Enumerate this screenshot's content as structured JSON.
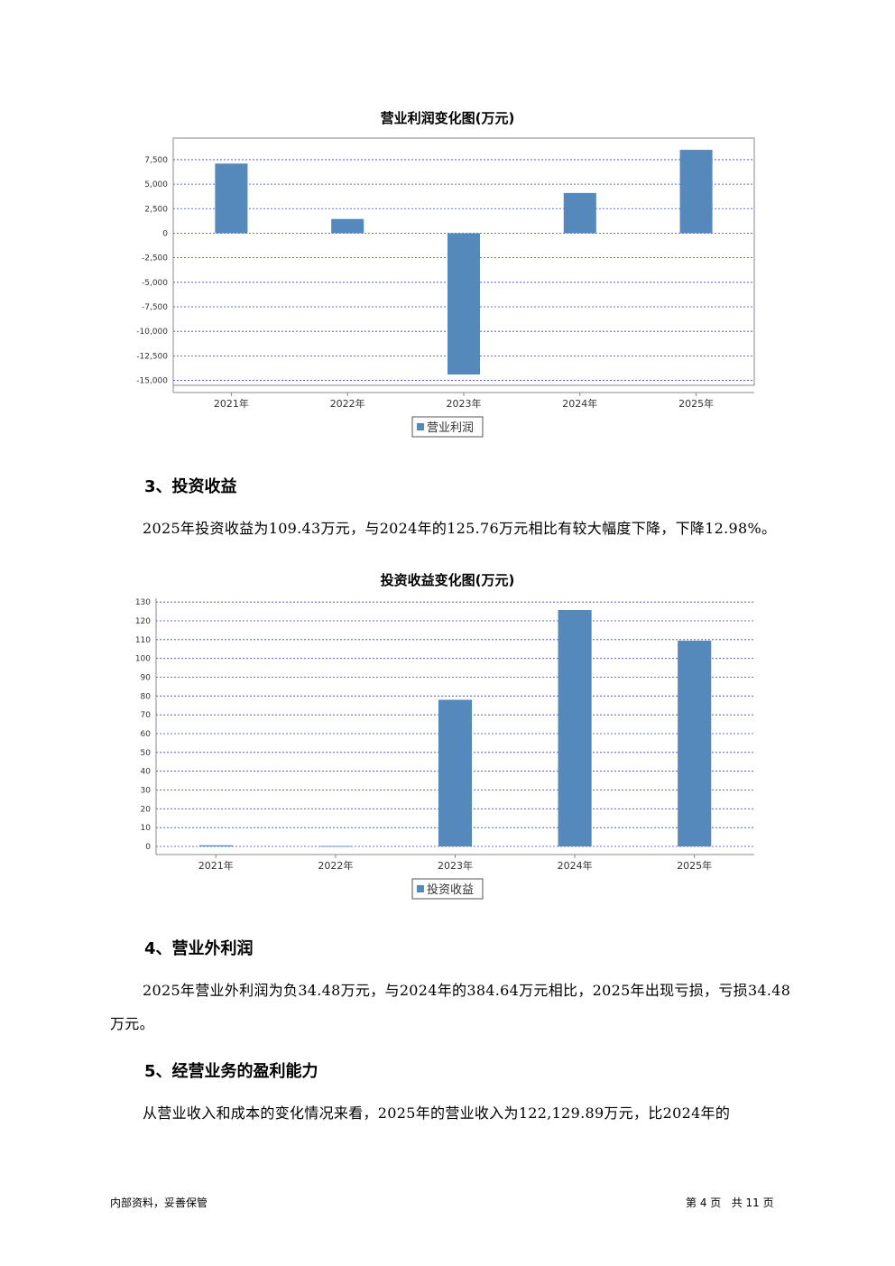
{
  "charts": {
    "op_profit": {
      "title": "营业利润变化图(万元)",
      "chart_data": {
        "type": "bar",
        "title": "营业利润变化图(万元)",
        "categories": [
          "2021年",
          "2022年",
          "2023年",
          "2024年",
          "2025年"
        ],
        "series": [
          {
            "name": "营业利润",
            "values": [
              7100,
              1450,
              -14400,
              4100,
              8500
            ]
          }
        ],
        "ylim": [
          -15500,
          9700
        ],
        "yticks": [
          7500,
          5000,
          2500,
          0,
          -2500,
          -5000,
          -7500,
          -10000,
          -12500,
          -15000
        ],
        "ytick_labels": [
          "7,500",
          "5,000",
          "2,500",
          "0",
          "-2,500",
          "-5,000",
          "-7,500",
          "-10,000",
          "-12,500",
          "-15,000"
        ],
        "grid": true,
        "legend": "bottom",
        "color": "#5588bb"
      }
    },
    "inv_income": {
      "title": "投资收益变化图(万元)",
      "chart_data": {
        "type": "bar",
        "title": "投资收益变化图(万元)",
        "categories": [
          "2021年",
          "2022年",
          "2023年",
          "2024年",
          "2025年"
        ],
        "series": [
          {
            "name": "投资收益",
            "values": [
              0.6,
              0.2,
              78,
              125.76,
              109.43
            ]
          }
        ],
        "ylim": [
          0,
          132
        ],
        "yticks": [
          0,
          10,
          20,
          30,
          40,
          50,
          60,
          70,
          80,
          90,
          100,
          110,
          120,
          130
        ],
        "ytick_labels": [
          "0",
          "10",
          "20",
          "30",
          "40",
          "50",
          "60",
          "70",
          "80",
          "90",
          "100",
          "110",
          "120",
          "130"
        ],
        "grid": true,
        "legend": "bottom",
        "color": "#5588bb"
      }
    }
  },
  "sections": {
    "s3": {
      "heading": "3、投资收益",
      "text": "2025年投资收益为109.43万元，与2024年的125.76万元相比有较大幅度下降，下降12.98%。"
    },
    "s4": {
      "heading": "4、营业外利润",
      "text": "2025年营业外利润为负34.48万元，与2024年的384.64万元相比，2025年出现亏损，亏损34.48万元。"
    },
    "s5": {
      "heading": "5、经营业务的盈利能力",
      "text": "从营业收入和成本的变化情况来看，2025年的营业收入为122,129.89万元，比2024年的"
    }
  },
  "footer": {
    "left": "内部资料，妥善保管",
    "right": "第 4 页   共 11 页"
  }
}
